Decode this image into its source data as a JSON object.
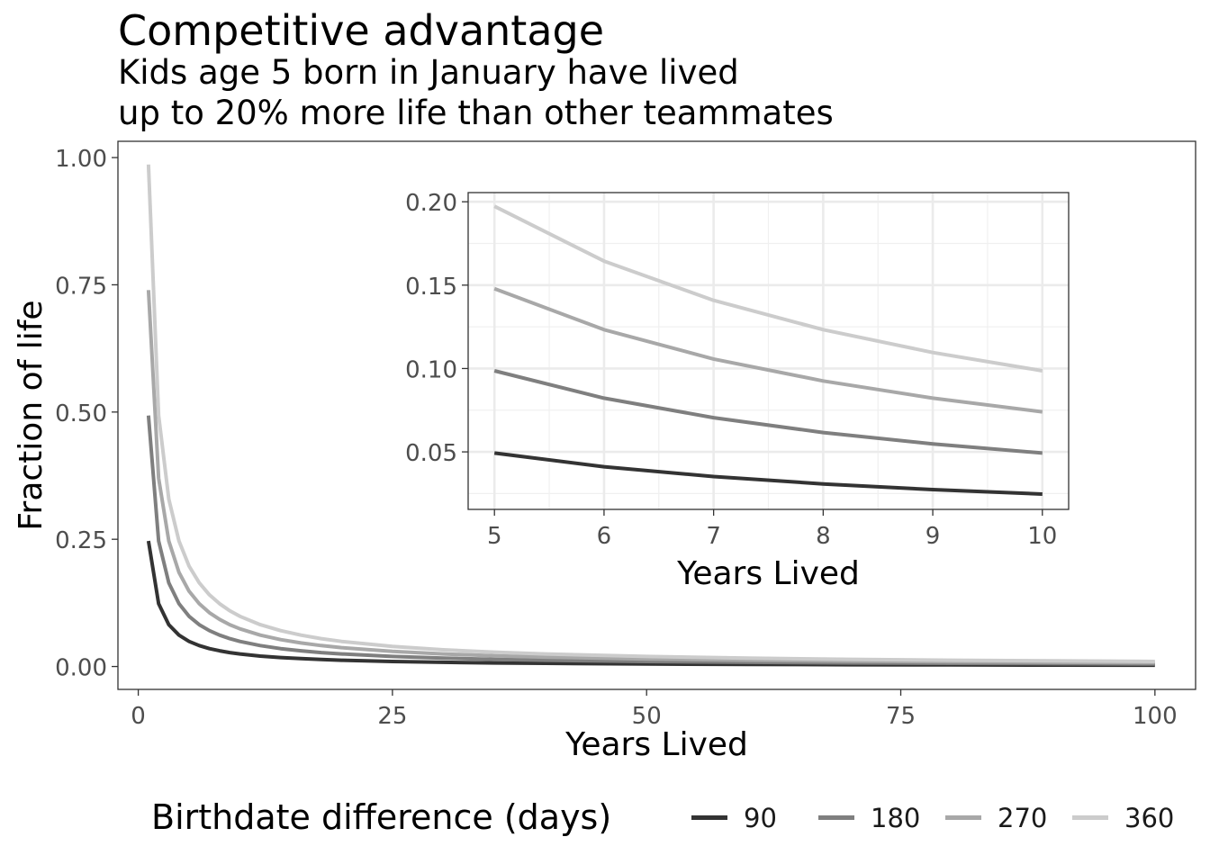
{
  "chart_data": [
    {
      "type": "line",
      "title": "Competitive advantage",
      "subtitle_lines": [
        "Kids age 5 born in January have lived",
        "up to 20% more life than other teammates"
      ],
      "xlabel": "Years Lived",
      "ylabel": "Fraction of life",
      "xlim": [
        -2,
        104
      ],
      "ylim": [
        -0.045,
        1.032
      ],
      "xticks": [
        0,
        25,
        50,
        75,
        100
      ],
      "xtick_labels": [
        "0",
        "25",
        "50",
        "75",
        "100"
      ],
      "yticks": [
        0,
        0.25,
        0.5,
        0.75,
        1.0
      ],
      "ytick_labels": [
        "0.00",
        "0.25",
        "0.50",
        "0.75",
        "1.00"
      ],
      "grid": false,
      "x": [
        1,
        2,
        3,
        4,
        5,
        6,
        7,
        8,
        9,
        10,
        12,
        14,
        16,
        18,
        20,
        25,
        30,
        35,
        40,
        50,
        60,
        70,
        80,
        90,
        100
      ],
      "series": [
        {
          "name": "90",
          "color": "#333333",
          "values": [
            0.2466,
            0.1233,
            0.0822,
            0.0616,
            0.0493,
            0.0411,
            0.0352,
            0.0308,
            0.0274,
            0.0247,
            0.0205,
            0.0176,
            0.0154,
            0.0137,
            0.0123,
            0.0099,
            0.0082,
            0.007,
            0.0062,
            0.0049,
            0.0041,
            0.0035,
            0.0031,
            0.0027,
            0.0025
          ]
        },
        {
          "name": "180",
          "color": "#7f7f7f",
          "values": [
            0.4932,
            0.2466,
            0.1644,
            0.1233,
            0.0986,
            0.0822,
            0.0705,
            0.0616,
            0.0548,
            0.0493,
            0.0411,
            0.0352,
            0.0308,
            0.0274,
            0.0247,
            0.0197,
            0.0164,
            0.0141,
            0.0123,
            0.0099,
            0.0082,
            0.007,
            0.0062,
            0.0055,
            0.0049
          ]
        },
        {
          "name": "270",
          "color": "#a8a8a8",
          "values": [
            0.7397,
            0.3699,
            0.2466,
            0.1849,
            0.1479,
            0.1233,
            0.1057,
            0.0925,
            0.0822,
            0.074,
            0.0616,
            0.0528,
            0.0462,
            0.0411,
            0.037,
            0.0296,
            0.0247,
            0.0211,
            0.0185,
            0.0148,
            0.0123,
            0.0106,
            0.0092,
            0.0082,
            0.0074
          ]
        },
        {
          "name": "360",
          "color": "#cccccc",
          "values": [
            0.9863,
            0.4932,
            0.3288,
            0.2466,
            0.1973,
            0.1644,
            0.1409,
            0.1233,
            0.1096,
            0.0986,
            0.0822,
            0.0705,
            0.0616,
            0.0548,
            0.0493,
            0.0395,
            0.0329,
            0.0282,
            0.0247,
            0.0197,
            0.0164,
            0.0141,
            0.0123,
            0.011,
            0.0099
          ]
        }
      ],
      "legend": {
        "title": "Birthdate difference (days)",
        "position": "bottom"
      }
    },
    {
      "type": "line",
      "xlabel": "Years Lived",
      "ylabel": "",
      "xlim": [
        4.76,
        10.24
      ],
      "ylim": [
        0.0155,
        0.2055
      ],
      "xticks": [
        5,
        6,
        7,
        8,
        9,
        10
      ],
      "xtick_labels": [
        "5",
        "6",
        "7",
        "8",
        "9",
        "10"
      ],
      "yticks": [
        0.05,
        0.1,
        0.15,
        0.2
      ],
      "ytick_labels": [
        "0.05",
        "0.10",
        "0.15",
        "0.20"
      ],
      "grid": true,
      "x": [
        5,
        6,
        7,
        8,
        9,
        10
      ],
      "series": [
        {
          "name": "90",
          "color": "#333333",
          "values": [
            0.0493,
            0.0411,
            0.0352,
            0.0308,
            0.0274,
            0.0247
          ]
        },
        {
          "name": "180",
          "color": "#7f7f7f",
          "values": [
            0.0986,
            0.0822,
            0.0705,
            0.0616,
            0.0548,
            0.0493
          ]
        },
        {
          "name": "270",
          "color": "#a8a8a8",
          "values": [
            0.1479,
            0.1233,
            0.1057,
            0.0925,
            0.0822,
            0.074
          ]
        },
        {
          "name": "360",
          "color": "#cccccc",
          "values": [
            0.1973,
            0.1644,
            0.1409,
            0.1233,
            0.1096,
            0.0986
          ]
        }
      ]
    }
  ]
}
